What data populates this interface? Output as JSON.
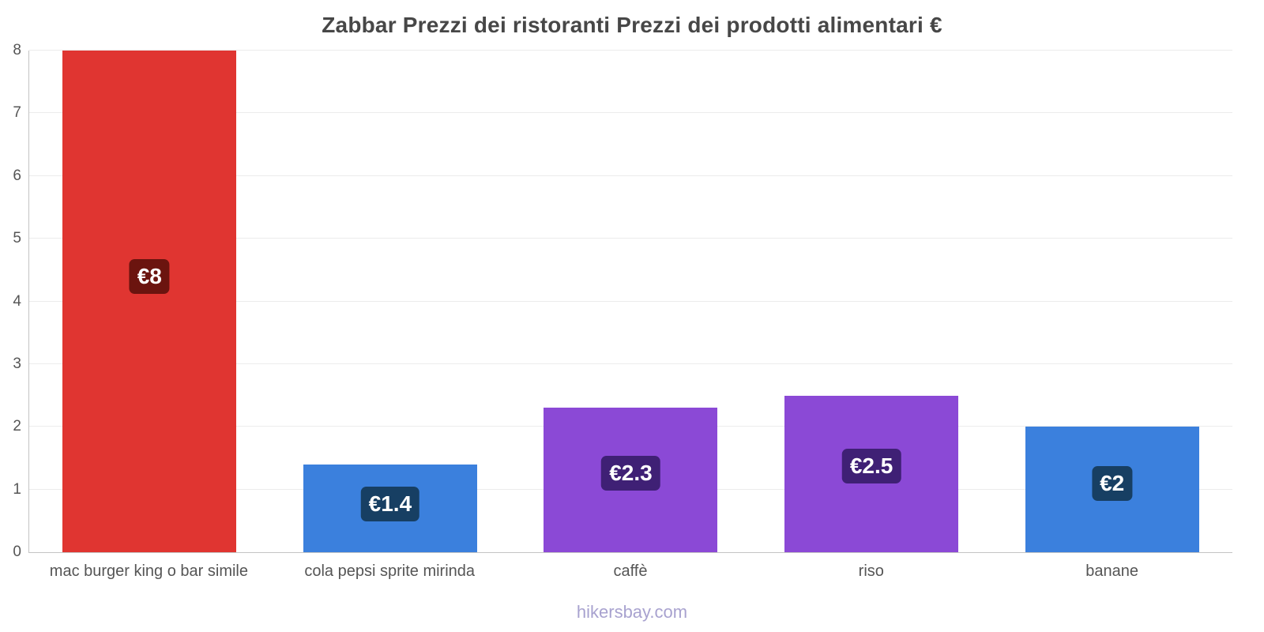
{
  "title": "Zabbar Prezzi dei ristoranti Prezzi dei prodotti alimentari €",
  "footer": "hikersbay.com",
  "colors": {
    "background": "#ffffff",
    "title_text": "#474747",
    "axis_line": "#c4c4c4",
    "gridline": "#ececec",
    "tick_text": "#555555",
    "category_text": "#555555",
    "footer_text": "#a8a2cf",
    "chip_text": "#ffffff"
  },
  "chart_data": {
    "type": "bar",
    "title": "Zabbar Prezzi dei ristoranti Prezzi dei prodotti alimentari €",
    "xlabel": "",
    "ylabel": "",
    "ylim": [
      0,
      8
    ],
    "yticks": [
      0,
      1,
      2,
      3,
      4,
      5,
      6,
      7,
      8
    ],
    "grid": true,
    "legend": "none",
    "currency": "€",
    "categories": [
      "mac burger king o bar simile",
      "cola pepsi sprite mirinda",
      "caffè",
      "riso",
      "banane"
    ],
    "values": [
      8,
      1.4,
      2.3,
      2.5,
      2
    ],
    "value_labels": [
      "€8",
      "€1.4",
      "€2.3",
      "€2.5",
      "€2"
    ],
    "bar_colors": [
      "#e03531",
      "#3b80dd",
      "#8b49d6",
      "#8b49d6",
      "#3b80dd"
    ],
    "label_bg_colors": [
      "#6b140f",
      "#173f63",
      "#3f2075",
      "#3f2075",
      "#173f63"
    ]
  }
}
